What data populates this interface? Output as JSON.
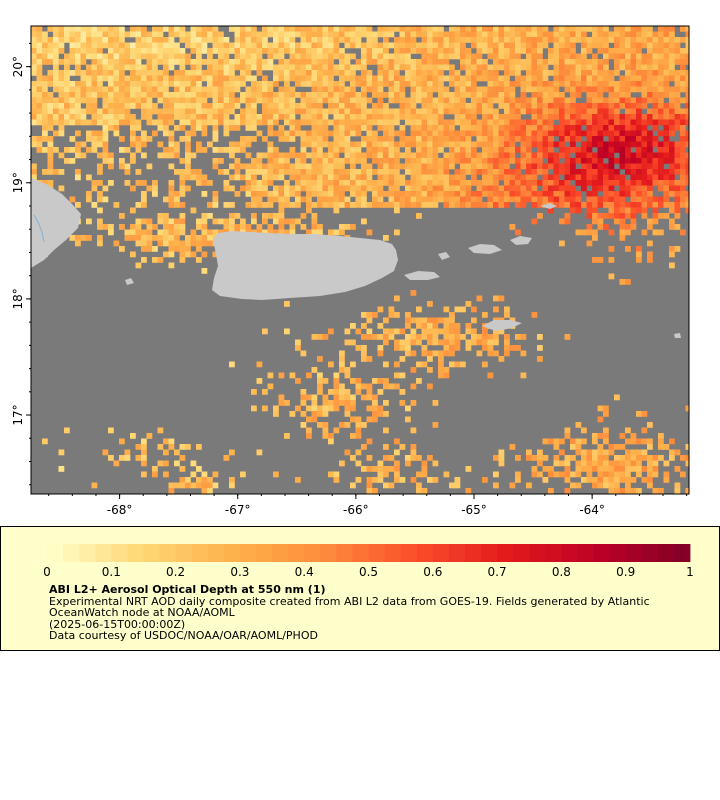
{
  "map": {
    "lon_range": [
      -68.75,
      -63.18
    ],
    "lat_range": [
      16.32,
      20.35
    ],
    "x_ticks": [
      {
        "value": -68,
        "label": "-68°"
      },
      {
        "value": -67,
        "label": "-67°"
      },
      {
        "value": -66,
        "label": "-66°"
      },
      {
        "value": -65,
        "label": "-65°"
      },
      {
        "value": -64,
        "label": "-64°"
      }
    ],
    "y_ticks": [
      {
        "value": 20,
        "label": "20°"
      },
      {
        "value": 19,
        "label": "19°"
      },
      {
        "value": 18,
        "label": "18°"
      },
      {
        "value": 17,
        "label": "17°"
      }
    ],
    "colors": {
      "no_data": "#7a7a7a",
      "land": "#c9c9c9",
      "frame": "#000000"
    }
  },
  "colorbar": {
    "min": 0,
    "max": 1,
    "steps": 40,
    "tick_labels": [
      "0",
      "0.1",
      "0.2",
      "0.3",
      "0.4",
      "0.5",
      "0.6",
      "0.7",
      "0.8",
      "0.9",
      "1"
    ],
    "color_stops": [
      "#ffffcc",
      "#fed976",
      "#feb24c",
      "#fd8d3c",
      "#fc4e2a",
      "#e31a1c",
      "#bd0026",
      "#800026"
    ]
  },
  "legend": {
    "title": "ABI L2+ Aerosol Optical Depth at 550 nm (1)",
    "line1": "Experimental NRT AOD daily composite created from ABI L2 data from GOES-19. Fields generated by Atlantic",
    "line2": "OceanWatch node at NOAA/AOML",
    "line3": "(2025-06-15T00:00:00Z)",
    "line4": "Data courtesy of USDOC/NOAA/OAR/AOML/PHOD"
  }
}
